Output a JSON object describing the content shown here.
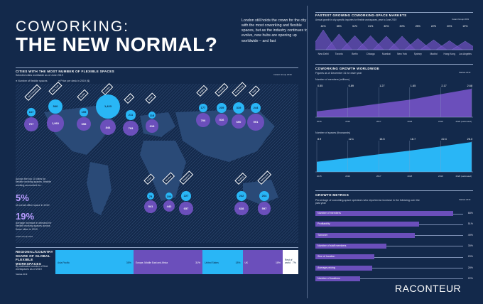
{
  "header": {
    "title_line1": "COWORKING:",
    "title_line2": "THE NEW NORMAL?",
    "intro": "London still holds the crown for the city with the most coworking and flexible spaces, but as the industry continues to evolve, new hubs are opening up worldwide – and fast"
  },
  "map": {
    "title": "CITIES WITH THE MOST NUMBER OF FLEXIBLE SPACES",
    "subtitle": "Selected cities worldwide as of June 2019",
    "source": "Instant Group 2019",
    "legend_spaces": "Number of flexible spaces",
    "legend_price": "Price per desk in 2019 ($)",
    "cities": [
      {
        "name": "San Francisco",
        "spaces": 167,
        "price": 707
      },
      {
        "name": "New York",
        "spaces": 540,
        "price": 1060
      },
      {
        "name": "Dublin",
        "spaces": 155,
        "price": 658
      },
      {
        "name": "London",
        "spaces": 1423,
        "price": 844
      },
      {
        "name": "Paris",
        "spaces": 211,
        "price": 793
      },
      {
        "name": "Berlin",
        "spaces": 118,
        "price": 618
      },
      {
        "name": "Beijing",
        "spaces": 177,
        "price": 706
      },
      {
        "name": "Shanghai",
        "spaces": 239,
        "price": 516
      },
      {
        "name": "Hong Kong",
        "spaces": 319,
        "price": 690
      },
      {
        "name": "Tokyo",
        "spaces": 244,
        "price": 991
      },
      {
        "name": "Dubai",
        "spaces": 79,
        "price": 541
      },
      {
        "name": "Mumbai",
        "spaces": 100,
        "price": 442
      },
      {
        "name": "Singapore",
        "spaces": 227,
        "price": 657
      },
      {
        "name": "Sydney",
        "spaces": 242,
        "price": 628
      },
      {
        "name": "Melbourne",
        "spaces": 264,
        "price": 597
      }
    ]
  },
  "stats": {
    "intro": "Across the top 10 cities for flexible working spaces, flexible working accounted for...",
    "stat1_value": "5%",
    "stat1_label": "of overall office space in 2019",
    "stat2_value": "19%",
    "stat2_label": "average increase in demand for flexible working spaces across those cities in 2019",
    "source": "Instant Group 2019"
  },
  "share": {
    "title": "REGIONAL/COUNTRY SHARE OF GLOBAL FLEXIBLE WORKSPACES",
    "subtitle": "By estimated number of flexi workspaces as of 2019",
    "source": "Statista 2019",
    "segments": [
      {
        "label": "Asia Pacific",
        "value": 35,
        "pct": "35%"
      },
      {
        "label": "Europe, Middle East and Africa",
        "value": 31,
        "pct": "31%"
      },
      {
        "label": "United States",
        "value": 18,
        "pct": "18%"
      },
      {
        "label": "UK",
        "value": 18,
        "pct": "18%"
      },
      {
        "label": "Rest of world",
        "value": 7,
        "pct": "7%"
      }
    ]
  },
  "fastest": {
    "title": "FASTEST GROWING COWORKING-SPACE MARKETS",
    "subtitle": "Annual growth in city-specific inquiries for flexible workspaces, year to June 2019",
    "source": "Instant Group 2019",
    "cities": [
      {
        "name": "New Delhi",
        "pct": "44%",
        "value": 44
      },
      {
        "name": "Toronto",
        "pct": "35%",
        "value": 35
      },
      {
        "name": "Berlin",
        "pct": "31%",
        "value": 31
      },
      {
        "name": "Chicago",
        "pct": "31%",
        "value": 31
      },
      {
        "name": "Mumbai",
        "pct": "30%",
        "value": 30
      },
      {
        "name": "New York",
        "pct": "30%",
        "value": 30
      },
      {
        "name": "Sydney",
        "pct": "25%",
        "value": 25
      },
      {
        "name": "Madrid",
        "pct": "22%",
        "value": 22
      },
      {
        "name": "Hong Kong",
        "pct": "20%",
        "value": 20
      },
      {
        "name": "Los Angeles",
        "pct": "19%",
        "value": 19
      }
    ]
  },
  "growth": {
    "title": "COWORKING GROWTH WORLDWIDE",
    "subtitle": "Figures as of December 31 for each year",
    "source": "Statista 2019",
    "members_label": "Number of members (millions)",
    "spaces_label": "Number of spaces (thousands)",
    "years": [
      "2015",
      "2016",
      "2017",
      "2018",
      "2019",
      "2020 (estimated)"
    ]
  },
  "metrics": {
    "title": "GROWTH METRICS",
    "subtitle": "Percentage of coworking-space operators who reported an increase in the following over the past year",
    "source": "Statista 2019",
    "items": [
      {
        "label": "Number of members",
        "value": 68,
        "pct": "68%"
      },
      {
        "label": "Profitability",
        "value": 51,
        "pct": "51%"
      },
      {
        "label": "Turnover",
        "value": 49,
        "pct": "49%"
      },
      {
        "label": "Number of staff members",
        "value": 35,
        "pct": "35%"
      },
      {
        "label": "Size of location",
        "value": 29,
        "pct": "29%"
      },
      {
        "label": "Average pricing",
        "value": 28,
        "pct": "28%"
      },
      {
        "label": "Number of locations",
        "value": 22,
        "pct": "22%"
      }
    ]
  },
  "brand": "RACONTEUR",
  "chart_data": [
    {
      "type": "area",
      "title": "Number of members (millions)",
      "x": [
        "2015",
        "2016",
        "2017",
        "2018",
        "2019",
        "2020 (estimated)"
      ],
      "values": [
        0.55,
        0.89,
        1.27,
        1.65,
        2.17,
        2.68
      ],
      "labels": [
        "0.55",
        "0.89",
        "1.27",
        "1.65",
        "2.17",
        "2.68"
      ]
    },
    {
      "type": "area",
      "title": "Number of spaces (thousands)",
      "x": [
        "2015",
        "2016",
        "2017",
        "2018",
        "2019",
        "2020 (estimated)"
      ],
      "values": [
        8.9,
        12.1,
        15.5,
        18.7,
        22.4,
        26.3
      ],
      "labels": [
        "8.9",
        "12.1",
        "15.5",
        "18.7",
        "22.4",
        "26.3"
      ]
    },
    {
      "type": "bar",
      "title": "GROWTH METRICS",
      "categories": [
        "Number of members",
        "Profitability",
        "Turnover",
        "Number of staff members",
        "Size of location",
        "Average pricing",
        "Number of locations"
      ],
      "values": [
        68,
        51,
        49,
        35,
        29,
        28,
        22
      ]
    }
  ]
}
